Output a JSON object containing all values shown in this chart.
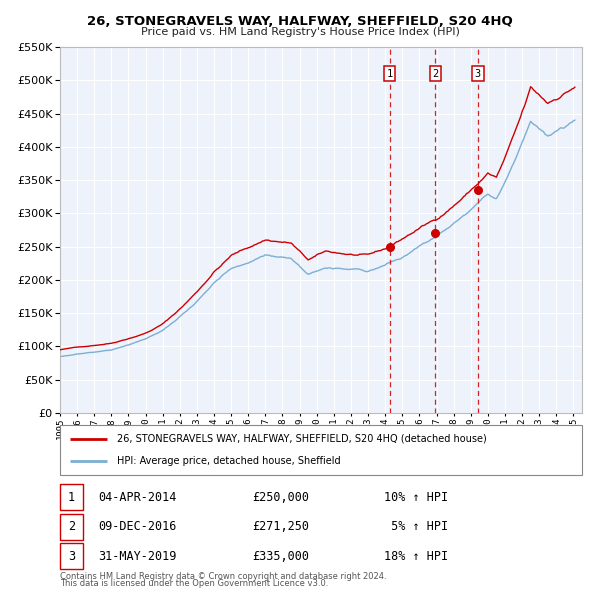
{
  "title": "26, STONEGRAVELS WAY, HALFWAY, SHEFFIELD, S20 4HQ",
  "subtitle": "Price paid vs. HM Land Registry's House Price Index (HPI)",
  "legend_line1": "26, STONEGRAVELS WAY, HALFWAY, SHEFFIELD, S20 4HQ (detached house)",
  "legend_line2": "HPI: Average price, detached house, Sheffield",
  "transactions": [
    {
      "num": 1,
      "date": "04-APR-2014",
      "price": 250000,
      "hpi_pct": "10%",
      "year": 2014.26
    },
    {
      "num": 2,
      "date": "09-DEC-2016",
      "price": 271250,
      "hpi_pct": "5%",
      "year": 2016.94
    },
    {
      "num": 3,
      "date": "31-MAY-2019",
      "price": 335000,
      "hpi_pct": "18%",
      "year": 2019.42
    }
  ],
  "trans_prices": [
    250000,
    271250,
    335000
  ],
  "trans_hpi_text": [
    "10% ↑ HPI",
    " 5% ↑ HPI",
    "18% ↑ HPI"
  ],
  "red_line_color": "#cc0000",
  "blue_line_color": "#7bafd4",
  "marker_color": "#cc0000",
  "vline_color": "#cc0000",
  "background_color": "#eef2fb",
  "grid_color": "#ffffff",
  "ylim": [
    0,
    550000
  ],
  "xlim_start": 1995.0,
  "xlim_end": 2025.5,
  "footnote1": "Contains HM Land Registry data © Crown copyright and database right 2024.",
  "footnote2": "This data is licensed under the Open Government Licence v3.0."
}
